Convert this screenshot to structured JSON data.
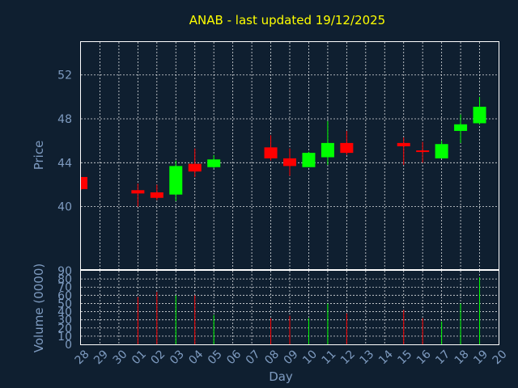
{
  "chart_data": {
    "type": "candlestick",
    "title": "ANAB - last updated 19/12/2025",
    "xlabel": "Day",
    "price_panel": {
      "ylabel": "Price",
      "ylim": [
        34.3,
        55
      ],
      "yticks": [
        "40",
        "44",
        "48",
        "52"
      ],
      "grid": true
    },
    "volume_panel": {
      "ylabel": "Volume (0000)",
      "ylim": [
        0,
        90
      ],
      "yticks": [
        "0",
        "10",
        "20",
        "30",
        "40",
        "50",
        "60",
        "70",
        "80",
        "90"
      ],
      "grid": true
    },
    "x_tick_labels": [
      "28",
      "29",
      "30",
      "01",
      "02",
      "03",
      "04",
      "05",
      "06",
      "07",
      "08",
      "09",
      "10",
      "11",
      "12",
      "13",
      "14",
      "15",
      "16",
      "17",
      "18",
      "19",
      "20"
    ],
    "up_color": "#00ff00",
    "down_color": "#ff0000",
    "candles": [
      {
        "day": "28",
        "open": 42.7,
        "high": 42.7,
        "low": 41.5,
        "close": 41.6,
        "volume": 0
      },
      {
        "day": "01",
        "open": 41.5,
        "high": 42.1,
        "low": 40.0,
        "close": 41.2,
        "volume": 58
      },
      {
        "day": "02",
        "open": 41.3,
        "high": 42.0,
        "low": 40.6,
        "close": 40.8,
        "volume": 64
      },
      {
        "day": "03",
        "open": 41.1,
        "high": 44.2,
        "low": 40.5,
        "close": 43.7,
        "volume": 60
      },
      {
        "day": "04",
        "open": 43.9,
        "high": 45.3,
        "low": 42.7,
        "close": 43.2,
        "volume": 60
      },
      {
        "day": "05",
        "open": 43.6,
        "high": 44.7,
        "low": 43.5,
        "close": 44.3,
        "volume": 36
      },
      {
        "day": "08",
        "open": 45.4,
        "high": 46.5,
        "low": 44.2,
        "close": 44.4,
        "volume": 32
      },
      {
        "day": "09",
        "open": 44.4,
        "high": 45.3,
        "low": 42.8,
        "close": 43.7,
        "volume": 35
      },
      {
        "day": "10",
        "open": 43.6,
        "high": 45.0,
        "low": 43.6,
        "close": 44.9,
        "volume": 32
      },
      {
        "day": "11",
        "open": 44.5,
        "high": 47.8,
        "low": 43.8,
        "close": 45.8,
        "volume": 50
      },
      {
        "day": "12",
        "open": 45.8,
        "high": 46.9,
        "low": 44.7,
        "close": 44.9,
        "volume": 38
      },
      {
        "day": "15",
        "open": 45.8,
        "high": 46.3,
        "low": 43.8,
        "close": 45.5,
        "volume": 42
      },
      {
        "day": "16",
        "open": 45.05,
        "high": 45.9,
        "low": 44.0,
        "close": 44.95,
        "volume": 32
      },
      {
        "day": "17",
        "open": 44.4,
        "high": 46.0,
        "low": 44.4,
        "close": 45.7,
        "volume": 28
      },
      {
        "day": "18",
        "open": 46.9,
        "high": 48.4,
        "low": 45.8,
        "close": 47.5,
        "volume": 50
      },
      {
        "day": "19",
        "open": 47.6,
        "high": 50.0,
        "low": 47.5,
        "close": 49.1,
        "volume": 82
      }
    ]
  }
}
